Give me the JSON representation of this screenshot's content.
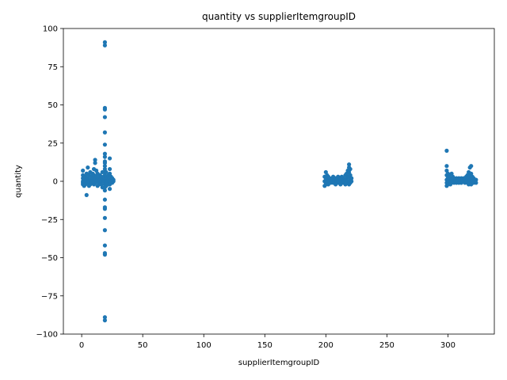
{
  "chart_data": {
    "type": "scatter",
    "title": "quantity vs supplierItemgroupID",
    "xlabel": "supplierItemgroupID",
    "ylabel": "quantity",
    "xlim": [
      -15,
      338
    ],
    "ylim": [
      -100,
      100
    ],
    "xticks": [
      0,
      50,
      100,
      150,
      200,
      250,
      300
    ],
    "yticks": [
      -100,
      -75,
      -50,
      -25,
      0,
      25,
      50,
      75,
      100
    ],
    "grid": false,
    "legend": "none",
    "color": "#1f77b4",
    "points": [
      [
        1,
        0
      ],
      [
        1,
        2
      ],
      [
        1,
        -1
      ],
      [
        1,
        4
      ],
      [
        1,
        -2
      ],
      [
        1,
        7
      ],
      [
        2,
        1
      ],
      [
        2,
        -3
      ],
      [
        3,
        3
      ],
      [
        3,
        0
      ],
      [
        3,
        -2
      ],
      [
        4,
        5
      ],
      [
        4,
        1
      ],
      [
        4,
        -9
      ],
      [
        5,
        9
      ],
      [
        5,
        2
      ],
      [
        5,
        -1
      ],
      [
        6,
        4
      ],
      [
        6,
        0
      ],
      [
        6,
        -3
      ],
      [
        7,
        6
      ],
      [
        7,
        1
      ],
      [
        7,
        -2
      ],
      [
        8,
        3
      ],
      [
        8,
        0
      ],
      [
        8,
        -1
      ],
      [
        9,
        2
      ],
      [
        9,
        0
      ],
      [
        9,
        5
      ],
      [
        10,
        8
      ],
      [
        10,
        1
      ],
      [
        10,
        -2
      ],
      [
        10,
        4
      ],
      [
        11,
        12
      ],
      [
        11,
        14
      ],
      [
        11,
        2
      ],
      [
        11,
        -1
      ],
      [
        12,
        3
      ],
      [
        12,
        0
      ],
      [
        12,
        7
      ],
      [
        13,
        1
      ],
      [
        13,
        -3
      ],
      [
        13,
        5
      ],
      [
        14,
        2
      ],
      [
        14,
        -2
      ],
      [
        14,
        0
      ],
      [
        15,
        4
      ],
      [
        15,
        1
      ],
      [
        15,
        -1
      ],
      [
        16,
        3
      ],
      [
        16,
        0
      ],
      [
        16,
        -2
      ],
      [
        17,
        6
      ],
      [
        17,
        2
      ],
      [
        17,
        -4
      ],
      [
        18,
        1
      ],
      [
        18,
        0
      ],
      [
        18,
        3
      ],
      [
        19,
        91
      ],
      [
        19,
        89
      ],
      [
        19,
        48
      ],
      [
        19,
        47
      ],
      [
        19,
        42
      ],
      [
        19,
        32
      ],
      [
        19,
        24
      ],
      [
        19,
        18
      ],
      [
        19,
        16
      ],
      [
        19,
        13
      ],
      [
        19,
        12
      ],
      [
        19,
        10
      ],
      [
        19,
        8
      ],
      [
        19,
        6
      ],
      [
        19,
        4
      ],
      [
        19,
        2
      ],
      [
        19,
        0
      ],
      [
        19,
        -2
      ],
      [
        19,
        -4
      ],
      [
        19,
        -6
      ],
      [
        19,
        -12
      ],
      [
        19,
        -17
      ],
      [
        19,
        -18
      ],
      [
        19,
        -24
      ],
      [
        19,
        -32
      ],
      [
        19,
        -42
      ],
      [
        19,
        -47
      ],
      [
        19,
        -48
      ],
      [
        19,
        -89
      ],
      [
        19,
        -91
      ],
      [
        20,
        6
      ],
      [
        20,
        3
      ],
      [
        20,
        0
      ],
      [
        20,
        -3
      ],
      [
        21,
        2
      ],
      [
        21,
        0
      ],
      [
        21,
        -1
      ],
      [
        22,
        4
      ],
      [
        22,
        1
      ],
      [
        22,
        -2
      ],
      [
        23,
        15
      ],
      [
        23,
        8
      ],
      [
        23,
        5
      ],
      [
        23,
        2
      ],
      [
        23,
        0
      ],
      [
        23,
        -2
      ],
      [
        23,
        -5
      ],
      [
        24,
        3
      ],
      [
        24,
        1
      ],
      [
        24,
        -1
      ],
      [
        25,
        2
      ],
      [
        25,
        0
      ],
      [
        25,
        -1
      ],
      [
        26,
        1
      ],
      [
        26,
        0
      ],
      [
        199,
        3
      ],
      [
        199,
        0
      ],
      [
        199,
        -3
      ],
      [
        200,
        6
      ],
      [
        200,
        2
      ],
      [
        200,
        -2
      ],
      [
        201,
        4
      ],
      [
        201,
        1
      ],
      [
        201,
        -1
      ],
      [
        202,
        3
      ],
      [
        202,
        0
      ],
      [
        202,
        -2
      ],
      [
        203,
        2
      ],
      [
        203,
        0
      ],
      [
        204,
        1
      ],
      [
        204,
        -1
      ],
      [
        205,
        2
      ],
      [
        205,
        0
      ],
      [
        206,
        3
      ],
      [
        206,
        -1
      ],
      [
        207,
        1
      ],
      [
        207,
        0
      ],
      [
        208,
        2
      ],
      [
        208,
        -2
      ],
      [
        209,
        1
      ],
      [
        209,
        0
      ],
      [
        210,
        3
      ],
      [
        210,
        -1
      ],
      [
        211,
        2
      ],
      [
        211,
        0
      ],
      [
        212,
        1
      ],
      [
        212,
        -2
      ],
      [
        213,
        3
      ],
      [
        213,
        0
      ],
      [
        214,
        2
      ],
      [
        214,
        -1
      ],
      [
        215,
        1
      ],
      [
        215,
        0
      ],
      [
        216,
        4
      ],
      [
        216,
        1
      ],
      [
        216,
        -2
      ],
      [
        217,
        5
      ],
      [
        217,
        2
      ],
      [
        217,
        -1
      ],
      [
        218,
        7
      ],
      [
        218,
        3
      ],
      [
        218,
        0
      ],
      [
        219,
        11
      ],
      [
        219,
        9
      ],
      [
        219,
        6
      ],
      [
        219,
        3
      ],
      [
        219,
        0
      ],
      [
        219,
        -2
      ],
      [
        220,
        8
      ],
      [
        220,
        4
      ],
      [
        220,
        1
      ],
      [
        220,
        -1
      ],
      [
        221,
        2
      ],
      [
        221,
        0
      ],
      [
        299,
        20
      ],
      [
        299,
        10
      ],
      [
        299,
        7
      ],
      [
        299,
        4
      ],
      [
        299,
        1
      ],
      [
        299,
        -1
      ],
      [
        299,
        -3
      ],
      [
        300,
        5
      ],
      [
        300,
        2
      ],
      [
        300,
        0
      ],
      [
        300,
        -2
      ],
      [
        301,
        4
      ],
      [
        301,
        1
      ],
      [
        302,
        2
      ],
      [
        302,
        0
      ],
      [
        302,
        -2
      ],
      [
        303,
        5
      ],
      [
        303,
        1
      ],
      [
        303,
        -1
      ],
      [
        304,
        3
      ],
      [
        304,
        0
      ],
      [
        305,
        2
      ],
      [
        305,
        -1
      ],
      [
        306,
        1
      ],
      [
        306,
        0
      ],
      [
        307,
        2
      ],
      [
        307,
        -1
      ],
      [
        308,
        1
      ],
      [
        308,
        0
      ],
      [
        309,
        2
      ],
      [
        309,
        -1
      ],
      [
        310,
        1
      ],
      [
        310,
        0
      ],
      [
        311,
        2
      ],
      [
        311,
        -1
      ],
      [
        312,
        1
      ],
      [
        312,
        0
      ],
      [
        313,
        2
      ],
      [
        313,
        0
      ],
      [
        314,
        1
      ],
      [
        314,
        -1
      ],
      [
        315,
        3
      ],
      [
        315,
        0
      ],
      [
        316,
        4
      ],
      [
        316,
        1
      ],
      [
        316,
        -1
      ],
      [
        317,
        6
      ],
      [
        317,
        2
      ],
      [
        317,
        -2
      ],
      [
        318,
        9
      ],
      [
        318,
        4
      ],
      [
        318,
        1
      ],
      [
        318,
        -1
      ],
      [
        319,
        10
      ],
      [
        319,
        5
      ],
      [
        319,
        2
      ],
      [
        319,
        -2
      ],
      [
        320,
        3
      ],
      [
        320,
        0
      ],
      [
        321,
        2
      ],
      [
        321,
        -1
      ],
      [
        322,
        1
      ],
      [
        322,
        0
      ],
      [
        323,
        1
      ],
      [
        323,
        -1
      ]
    ]
  }
}
